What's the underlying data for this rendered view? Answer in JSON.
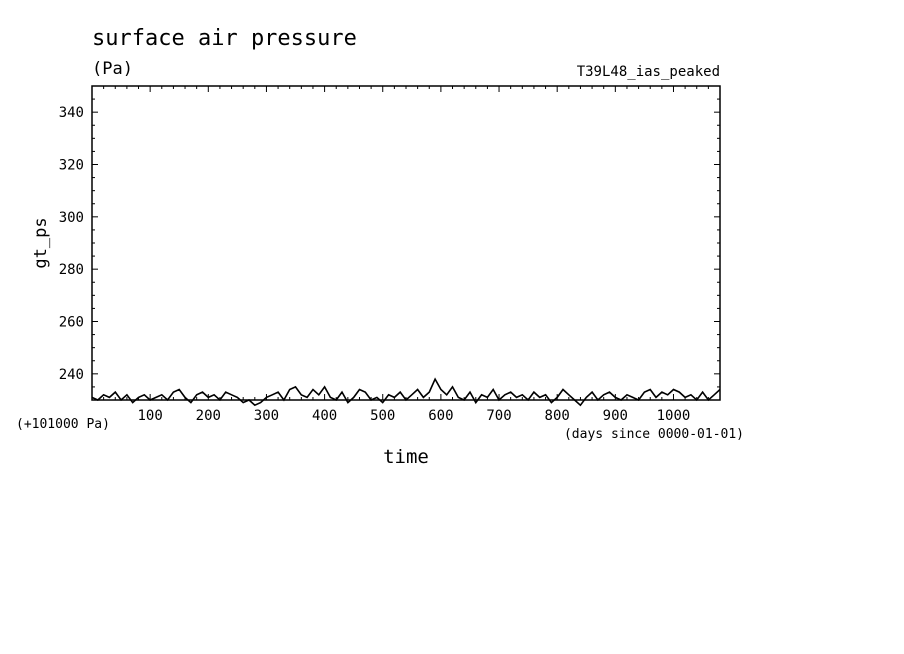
{
  "title": "surface air pressure",
  "units": "(Pa)",
  "experiment": "T39L48_ias_peaked",
  "ylabel": "gt_ps",
  "xlabel": "time",
  "y_offset_label": "(+101000 Pa)",
  "x_units_label": "(days since 0000-01-01)",
  "colors": {
    "line": "#000000",
    "background": "#ffffff"
  },
  "chart_data": {
    "type": "line",
    "title": "surface air pressure",
    "xlabel": "time",
    "ylabel": "gt_ps",
    "xlim": [
      0,
      1080
    ],
    "ylim": [
      230,
      350
    ],
    "x_ticks": [
      100,
      200,
      300,
      400,
      500,
      600,
      700,
      800,
      900,
      1000
    ],
    "y_ticks": [
      240,
      260,
      280,
      300,
      320,
      340
    ],
    "grid": false,
    "series": [
      {
        "x": [
          0,
          10,
          20,
          30,
          40,
          50,
          60,
          70,
          80,
          90,
          100,
          110,
          120,
          130,
          140,
          150,
          160,
          170,
          180,
          190,
          200,
          210,
          220,
          230,
          240,
          250,
          260,
          270,
          280,
          290,
          300,
          310,
          320,
          330,
          340,
          350,
          360,
          370,
          380,
          390,
          400,
          410,
          420,
          430,
          440,
          450,
          460,
          470,
          480,
          490,
          500,
          510,
          520,
          530,
          540,
          550,
          560,
          570,
          580,
          590,
          600,
          610,
          620,
          630,
          640,
          650,
          660,
          670,
          680,
          690,
          700,
          710,
          720,
          730,
          740,
          750,
          760,
          770,
          780,
          790,
          800,
          810,
          820,
          830,
          840,
          850,
          860,
          870,
          880,
          890,
          900,
          910,
          920,
          930,
          940,
          950,
          960,
          970,
          980,
          990,
          1000,
          1010,
          1020,
          1030,
          1040,
          1050,
          1060,
          1070,
          1080
        ],
        "values": [
          231,
          230,
          232,
          231,
          233,
          230,
          232,
          229,
          231,
          232,
          230,
          231,
          232,
          230,
          233,
          234,
          231,
          229,
          232,
          233,
          231,
          232,
          230,
          233,
          232,
          231,
          229,
          230,
          228,
          229,
          231,
          232,
          233,
          230,
          234,
          235,
          232,
          231,
          234,
          232,
          235,
          231,
          230,
          233,
          229,
          231,
          234,
          233,
          230,
          231,
          229,
          232,
          231,
          233,
          230,
          232,
          234,
          231,
          233,
          238,
          234,
          232,
          235,
          231,
          230,
          233,
          229,
          232,
          231,
          234,
          230,
          232,
          233,
          231,
          232,
          230,
          233,
          231,
          232,
          229,
          231,
          234,
          232,
          230,
          228,
          231,
          233,
          230,
          232,
          233,
          231,
          230,
          232,
          231,
          230,
          233,
          234,
          231,
          233,
          232,
          234,
          233,
          231,
          232,
          230,
          233,
          230,
          232,
          234
        ]
      }
    ]
  }
}
